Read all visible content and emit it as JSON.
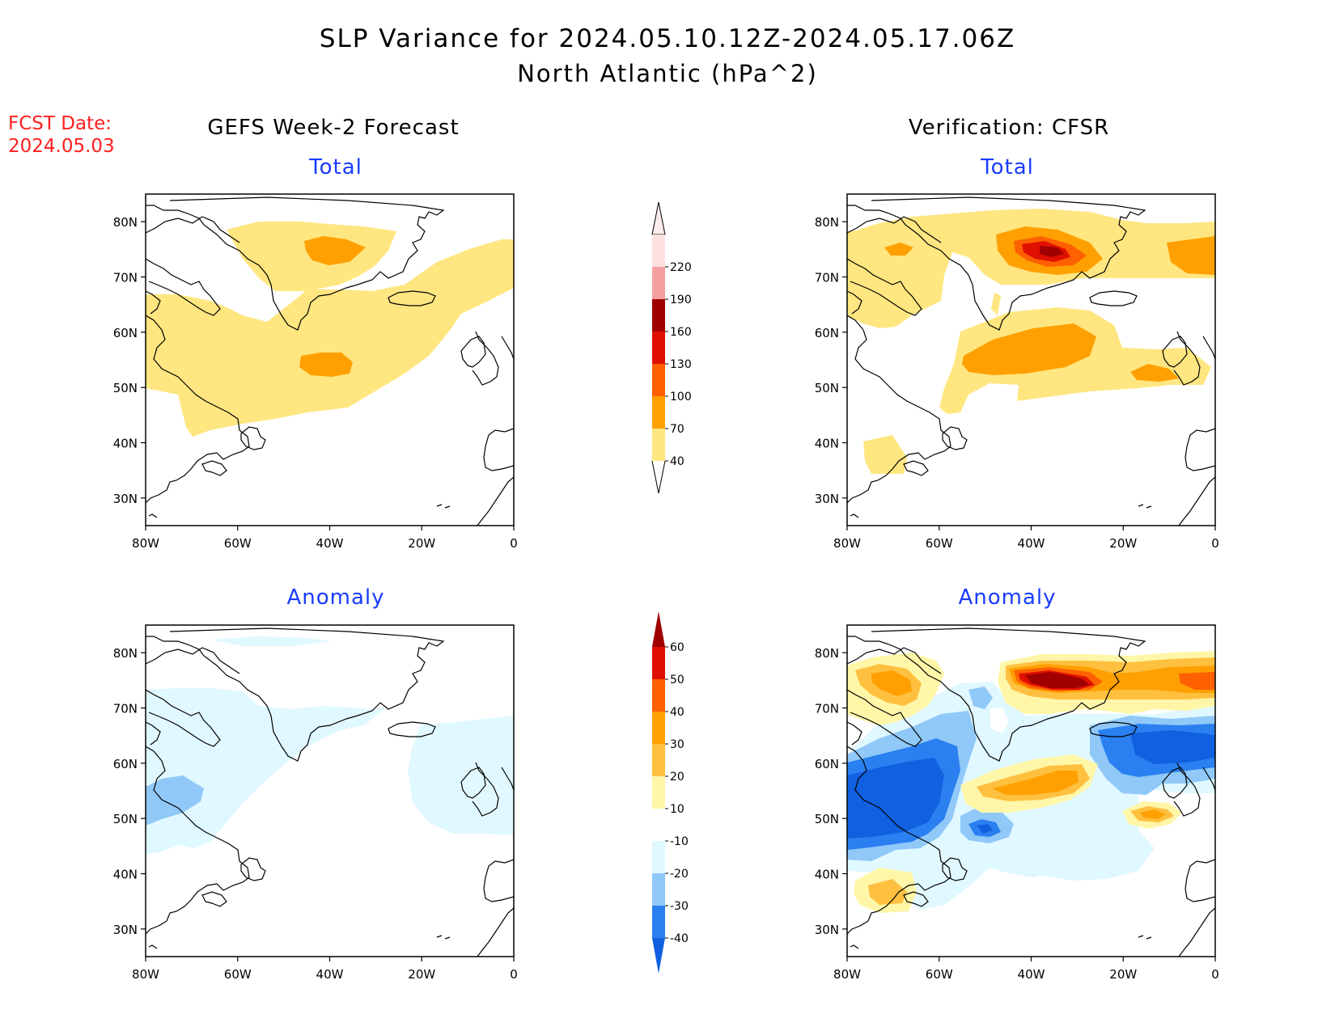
{
  "title": {
    "line1": "SLP Variance for 2024.05.10.12Z-2024.05.17.06Z",
    "line2": "North Atlantic (hPa^2)"
  },
  "fcst_date": {
    "label": "FCST Date:",
    "value": "2024.05.03"
  },
  "columns": {
    "left": "GEFS Week-2 Forecast",
    "right": "Verification: CFSR"
  },
  "panel_titles": {
    "total": "Total",
    "anomaly": "Anomaly"
  },
  "map_axes": {
    "lon_ticks": [
      "80W",
      "60W",
      "40W",
      "20W",
      "0"
    ],
    "lat_ticks": [
      "80N",
      "70N",
      "60N",
      "50N",
      "40N",
      "30N"
    ],
    "lon_range": [
      -80,
      0
    ],
    "lat_range": [
      25,
      85
    ]
  },
  "colorbar_total": {
    "labels": [
      "40",
      "70",
      "100",
      "130",
      "160",
      "190",
      "220"
    ],
    "colors": [
      "#ffe680",
      "#ffa000",
      "#ff6000",
      "#e01000",
      "#a00000",
      "#f4a0a0",
      "#fde0e0"
    ]
  },
  "colorbar_anomaly": {
    "labels": [
      "-40",
      "-30",
      "-20",
      "-10",
      "10",
      "20",
      "30",
      "40",
      "50",
      "60"
    ],
    "colors": [
      "#1060e0",
      "#2a80f0",
      "#90c8f8",
      "#e0f8ff",
      "#ffffff",
      "#fff6a8",
      "#ffc040",
      "#ffa000",
      "#ff6000",
      "#e01000",
      "#a00000"
    ]
  },
  "legend_colors": {
    "coast": "#000000",
    "yellow": "#ffe680",
    "orange": "#ffa000",
    "dark_orange": "#ff6000",
    "red": "#e01000",
    "dark_red": "#a00000",
    "pale_yellow": "#fff6a8",
    "light_orange": "#ffc040",
    "pale_blue": "#e0f8ff",
    "light_blue": "#90c8f8",
    "mid_blue": "#2a80f0",
    "dark_blue": "#1060e0"
  }
}
